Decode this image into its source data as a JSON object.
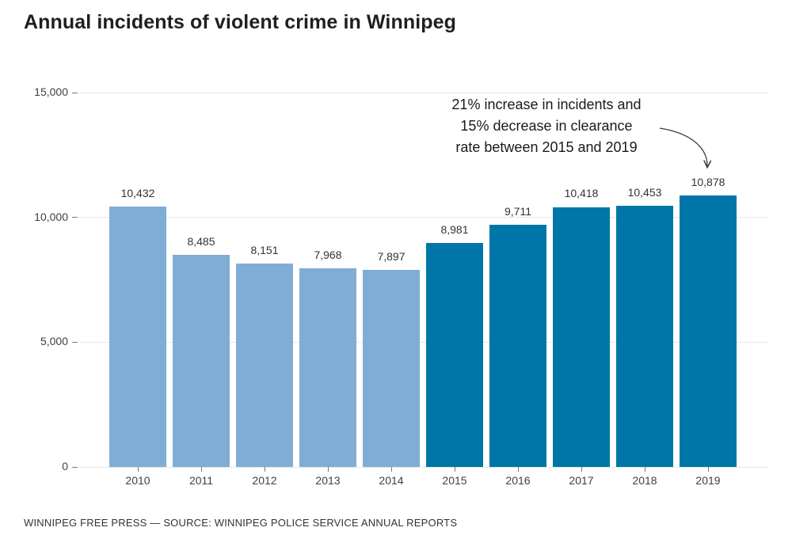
{
  "title": "Annual incidents of violent crime in Winnipeg",
  "source": "WINNIPEG FREE PRESS — SOURCE: WINNIPEG POLICE SERVICE ANNUAL REPORTS",
  "annotation": {
    "lines": [
      "21% increase in incidents and",
      "15% decrease in clearance",
      "rate between 2015 and 2019"
    ]
  },
  "colors": {
    "bar_early": "#7fadd6",
    "bar_recent": "#0076a8",
    "gridline": "#e6e6e6",
    "text_dark": "#1f1f1f",
    "arrow": "#3a3a3a"
  },
  "chart_data": {
    "type": "bar",
    "title": "Annual incidents of violent crime in Winnipeg",
    "xlabel": "",
    "ylabel": "",
    "categories": [
      "2010",
      "2011",
      "2012",
      "2013",
      "2014",
      "2015",
      "2016",
      "2017",
      "2018",
      "2019"
    ],
    "values": [
      10432,
      8485,
      8151,
      7968,
      7897,
      8981,
      9711,
      10418,
      10453,
      10878
    ],
    "value_labels": [
      "10,432",
      "8,485",
      "8,151",
      "7,968",
      "7,897",
      "8,981",
      "9,711",
      "10,418",
      "10,453",
      "10,878"
    ],
    "highlight_from_index": 5,
    "series": [
      {
        "name": "2010-2014",
        "color": "#7fadd6",
        "values": [
          10432,
          8485,
          8151,
          7968,
          7897
        ]
      },
      {
        "name": "2015-2019",
        "color": "#0076a8",
        "values": [
          8981,
          9711,
          10418,
          10453,
          10878
        ]
      }
    ],
    "ylim": [
      0,
      15000
    ],
    "yticks": [
      0,
      5000,
      10000,
      15000
    ],
    "ytick_labels": [
      "0",
      "5,000",
      "10,000",
      "15,000"
    ],
    "grid": true,
    "legend_position": "none",
    "annotation_text": "21% increase in incidents and 15% decrease in clearance rate between 2015 and 2019",
    "annotation_target": "2019"
  }
}
